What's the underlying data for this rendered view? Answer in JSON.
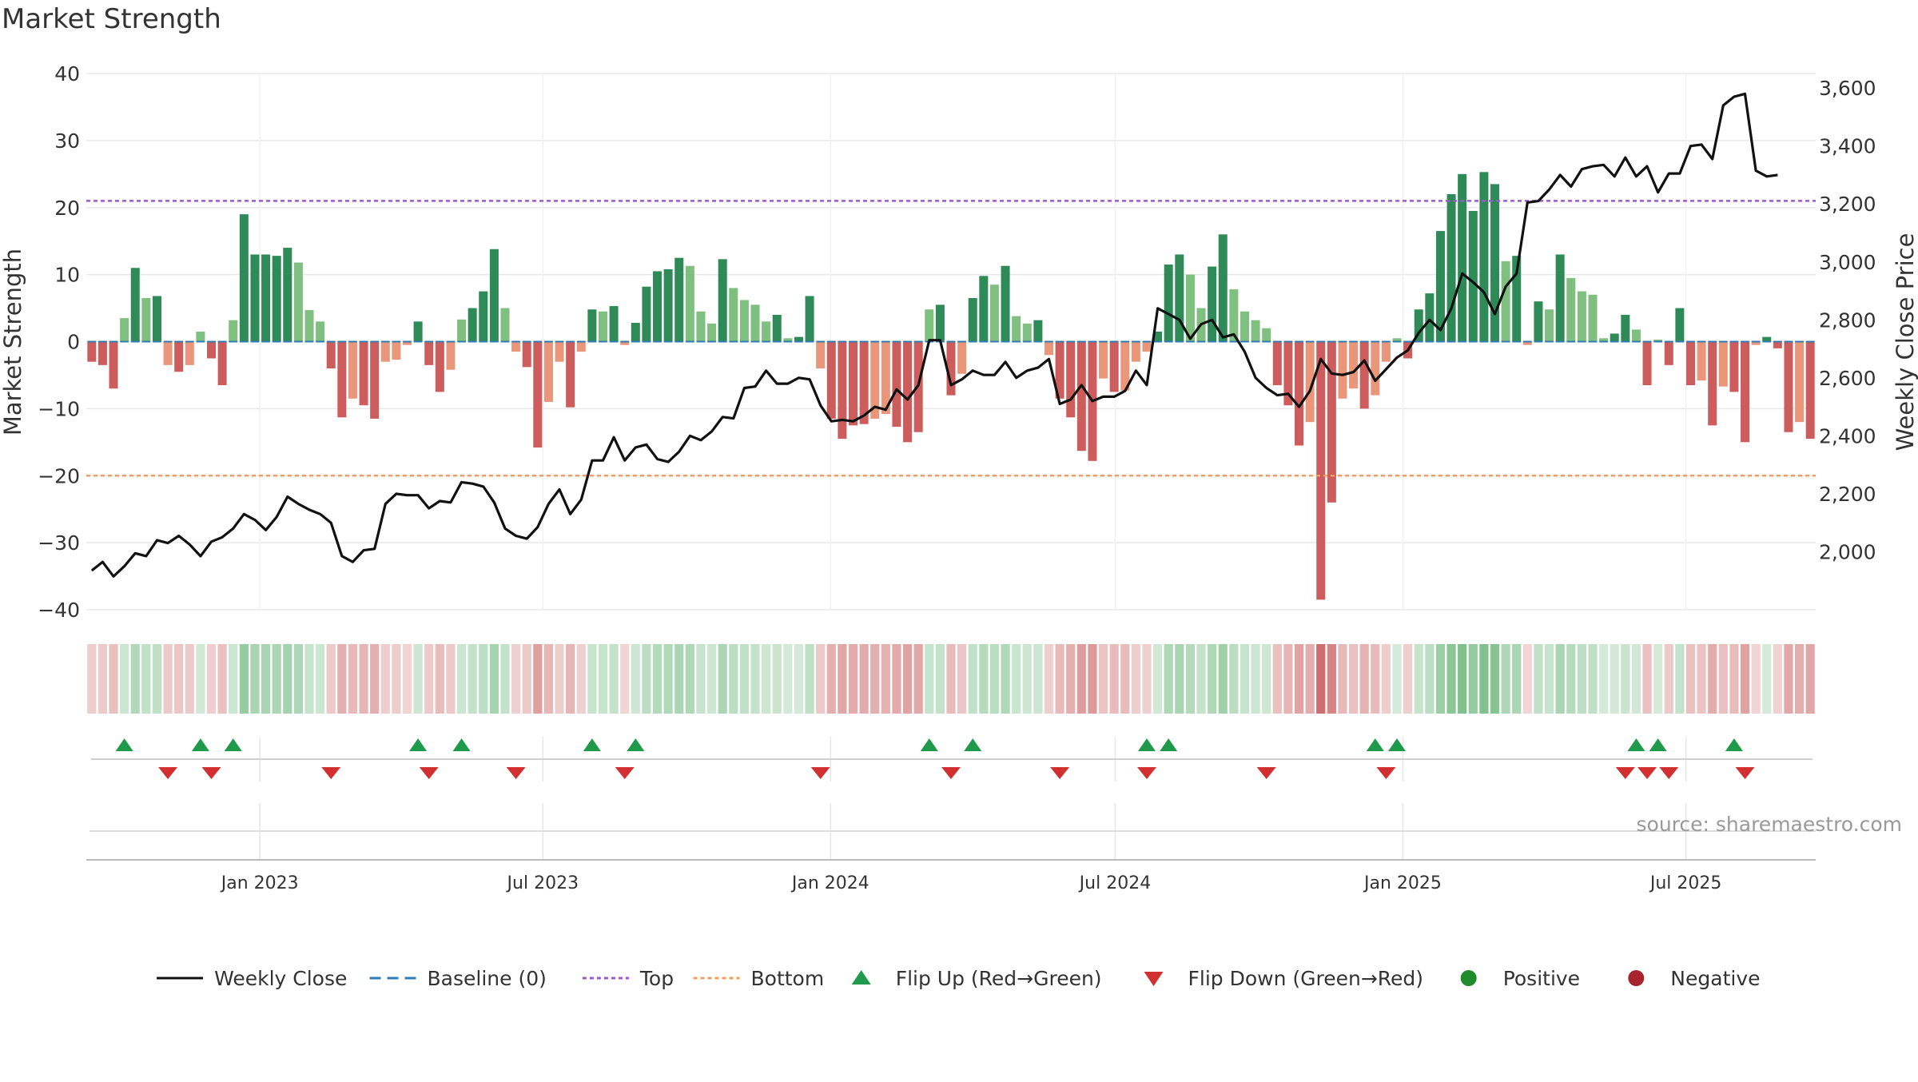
{
  "chart_data": {
    "type": "bar",
    "title": "Market Strength",
    "ylabel": "Market Strength",
    "y2label": "Weekly Close Price",
    "ylim": [
      -40,
      40
    ],
    "y2lim": [
      1800,
      3650
    ],
    "yticks": [
      40,
      30,
      20,
      10,
      0,
      -10,
      -20,
      -30,
      -40
    ],
    "ytick_labels": [
      "40",
      "30",
      "20",
      "10",
      "0",
      "−10",
      "−20",
      "−30",
      "−40"
    ],
    "y2ticks": [
      3600,
      3400,
      3200,
      3000,
      2800,
      2600,
      2400,
      2200,
      2000
    ],
    "y2tick_labels": [
      "3,600",
      "3,400",
      "3,200",
      "3,000",
      "2,800",
      "2,600",
      "2,400",
      "2,200",
      "2,000"
    ],
    "x_start": "2022-09-12",
    "x_end": "2025-09-22",
    "xticks": [
      "2023-01-01",
      "2023-07-01",
      "2024-01-01",
      "2024-07-01",
      "2025-01-01",
      "2025-07-01"
    ],
    "xtick_labels": [
      "Jan 2023",
      "Jul 2023",
      "Jan 2024",
      "Jul 2024",
      "Jan 2025",
      "Jul 2025"
    ],
    "top_line": 21,
    "bottom_line": -20,
    "grid": true,
    "legend_position": "bottom",
    "series": [
      {
        "name": "Weekly Close",
        "type": "line",
        "axis": "right",
        "values": [
          1935,
          1965,
          1915,
          1950,
          1995,
          1985,
          2040,
          2030,
          2055,
          2025,
          1985,
          2035,
          2050,
          2080,
          2130,
          2110,
          2075,
          2120,
          2190,
          2165,
          2145,
          2130,
          2100,
          1985,
          1965,
          2005,
          2010,
          2165,
          2200,
          2195,
          2195,
          2150,
          2175,
          2170,
          2240,
          2235,
          2225,
          2170,
          2080,
          2055,
          2045,
          2085,
          2165,
          2215,
          2130,
          2180,
          2315,
          2315,
          2395,
          2315,
          2360,
          2370,
          2320,
          2310,
          2345,
          2400,
          2385,
          2415,
          2465,
          2460,
          2565,
          2570,
          2625,
          2580,
          2580,
          2600,
          2595,
          2505,
          2450,
          2455,
          2450,
          2470,
          2500,
          2490,
          2560,
          2525,
          2575,
          2730,
          2730,
          2575,
          2595,
          2625,
          2610,
          2610,
          2655,
          2600,
          2625,
          2635,
          2665,
          2510,
          2525,
          2575,
          2520,
          2535,
          2535,
          2555,
          2625,
          2575,
          2840,
          2820,
          2800,
          2735,
          2785,
          2800,
          2740,
          2750,
          2690,
          2600,
          2565,
          2540,
          2545,
          2500,
          2555,
          2665,
          2615,
          2610,
          2620,
          2660,
          2590,
          2630,
          2670,
          2695,
          2755,
          2800,
          2765,
          2840,
          2960,
          2930,
          2895,
          2820,
          2915,
          2960,
          3205,
          3210,
          3250,
          3300,
          3260,
          3320,
          3330,
          3335,
          3295,
          3360,
          3295,
          3330,
          3240,
          3305,
          3305,
          3400,
          3405,
          3355,
          3540,
          3570,
          3580,
          3315,
          3295,
          3300
        ]
      },
      {
        "name": "Market Strength",
        "type": "bar",
        "axis": "left",
        "values": [
          -3,
          -3.5,
          -7,
          3.5,
          11,
          6.5,
          6.8,
          -3.5,
          -4.5,
          -3.5,
          1.5,
          -2.5,
          -6.5,
          3.2,
          19,
          13,
          13,
          12.8,
          14,
          11.8,
          4.7,
          3,
          -4,
          -11.3,
          -8.5,
          -9.5,
          -11.5,
          -3,
          -2.7,
          -0.5,
          3,
          -3.5,
          -7.5,
          -4.2,
          3.3,
          5,
          7.5,
          13.8,
          5,
          -1.5,
          -3.8,
          -15.8,
          -9,
          -3,
          -9.8,
          -1.5,
          4.8,
          4.5,
          5.3,
          -0.5,
          2.8,
          8.2,
          10.5,
          10.8,
          12.5,
          11.3,
          4.5,
          2.7,
          12.3,
          8,
          6.2,
          5.5,
          3,
          4,
          0.5,
          0.7,
          6.8,
          -4,
          -11.5,
          -14.5,
          -12.5,
          -12.3,
          -11.5,
          -10.8,
          -12.7,
          -15,
          -13.5,
          4.8,
          5.5,
          -8,
          -4.8,
          6.5,
          9.8,
          8.5,
          11.3,
          3.8,
          2.7,
          3.2,
          -2,
          -8.5,
          -11.3,
          -16.3,
          -17.8,
          -5.5,
          -7.5,
          -7.3,
          -3,
          -1.5,
          1.5,
          11.5,
          13,
          10,
          5,
          11.2,
          16,
          7.8,
          4.5,
          3.2,
          2,
          -6.5,
          -9.5,
          -15.5,
          -12,
          -38.5,
          -24,
          -8.5,
          -7,
          -10,
          -8,
          -3,
          0.5,
          -2.5,
          4.8,
          7.2,
          16.5,
          22,
          25,
          19.5,
          25.3,
          23.5,
          12,
          12.8,
          -0.5,
          6,
          4.8,
          13,
          9.5,
          7.5,
          7,
          0.5,
          1.2,
          4,
          1.8,
          -6.5,
          0.3,
          -3.5,
          5,
          -6.5,
          -5.8,
          -12.5,
          -6.7,
          -7.5,
          -15,
          -0.5,
          0.7,
          -1,
          -13.5,
          -12,
          -14.5
        ]
      }
    ],
    "flip_up_weeks": [
      3,
      10,
      13,
      30,
      34,
      46,
      50,
      77,
      81,
      97,
      99,
      118,
      120,
      142,
      144,
      151
    ],
    "flip_down_weeks": [
      7,
      11,
      22,
      31,
      39,
      49,
      67,
      79,
      89,
      97,
      108,
      119,
      141,
      143,
      145,
      152
    ]
  },
  "legend": [
    {
      "label": "Weekly Close",
      "kind": "line",
      "color": "#111111",
      "dash": ""
    },
    {
      "label": "Baseline (0)",
      "kind": "line",
      "color": "#2e7bb6",
      "dash": "14,8"
    },
    {
      "label": "Top",
      "kind": "line",
      "color": "#9b59d0",
      "dash": "5,4"
    },
    {
      "label": "Bottom",
      "kind": "line",
      "color": "#f0a060",
      "dash": "5,4"
    },
    {
      "label": "Flip Up (Red→Green)",
      "kind": "tri-up",
      "color": "#1e9a4a"
    },
    {
      "label": "Flip Down (Green→Red)",
      "kind": "tri-down",
      "color": "#d23030"
    },
    {
      "label": "Positive",
      "kind": "dot",
      "color": "#1f8b2c"
    },
    {
      "label": "Negative",
      "kind": "dot",
      "color": "#a8242c"
    }
  ],
  "source_note": "source: sharemaestro.com",
  "colors": {
    "pos_strong": "#2e8b57",
    "pos_light": "#7fbf7f",
    "neg_strong": "#cd5c5c",
    "neg_light": "#e9967a",
    "grid": "#e8e8e8",
    "axis_text": "#333333"
  }
}
